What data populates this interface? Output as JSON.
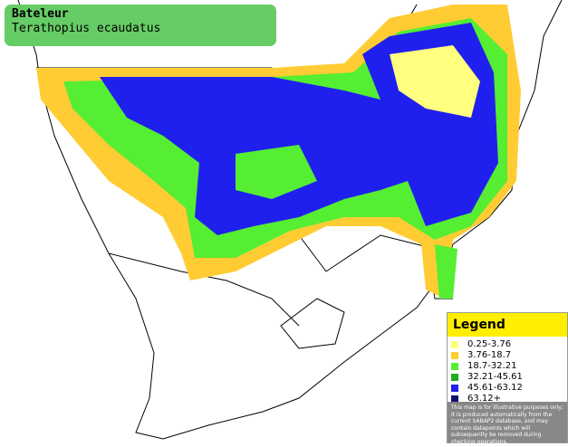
{
  "header": {
    "title": "Bateleur",
    "subtitle": "Terathopius ecaudatus"
  },
  "legend": {
    "title": "Legend",
    "items": [
      {
        "label": "0.25-3.76",
        "color": "#ffff80"
      },
      {
        "label": "3.76-18.7",
        "color": "#ffcc33"
      },
      {
        "label": "18.7-32.21",
        "color": "#55ee33"
      },
      {
        "label": "32.21-45.61",
        "color": "#22aa22"
      },
      {
        "label": "45.61-63.12",
        "color": "#2020ee"
      },
      {
        "label": "63.12+",
        "color": "#101070"
      }
    ],
    "disclaimer": "This map is for illustrative purposes only; it is produced automatically from the current SABAP2 database, and may contain datapoints which will subsequently be removed during checking operations."
  }
}
